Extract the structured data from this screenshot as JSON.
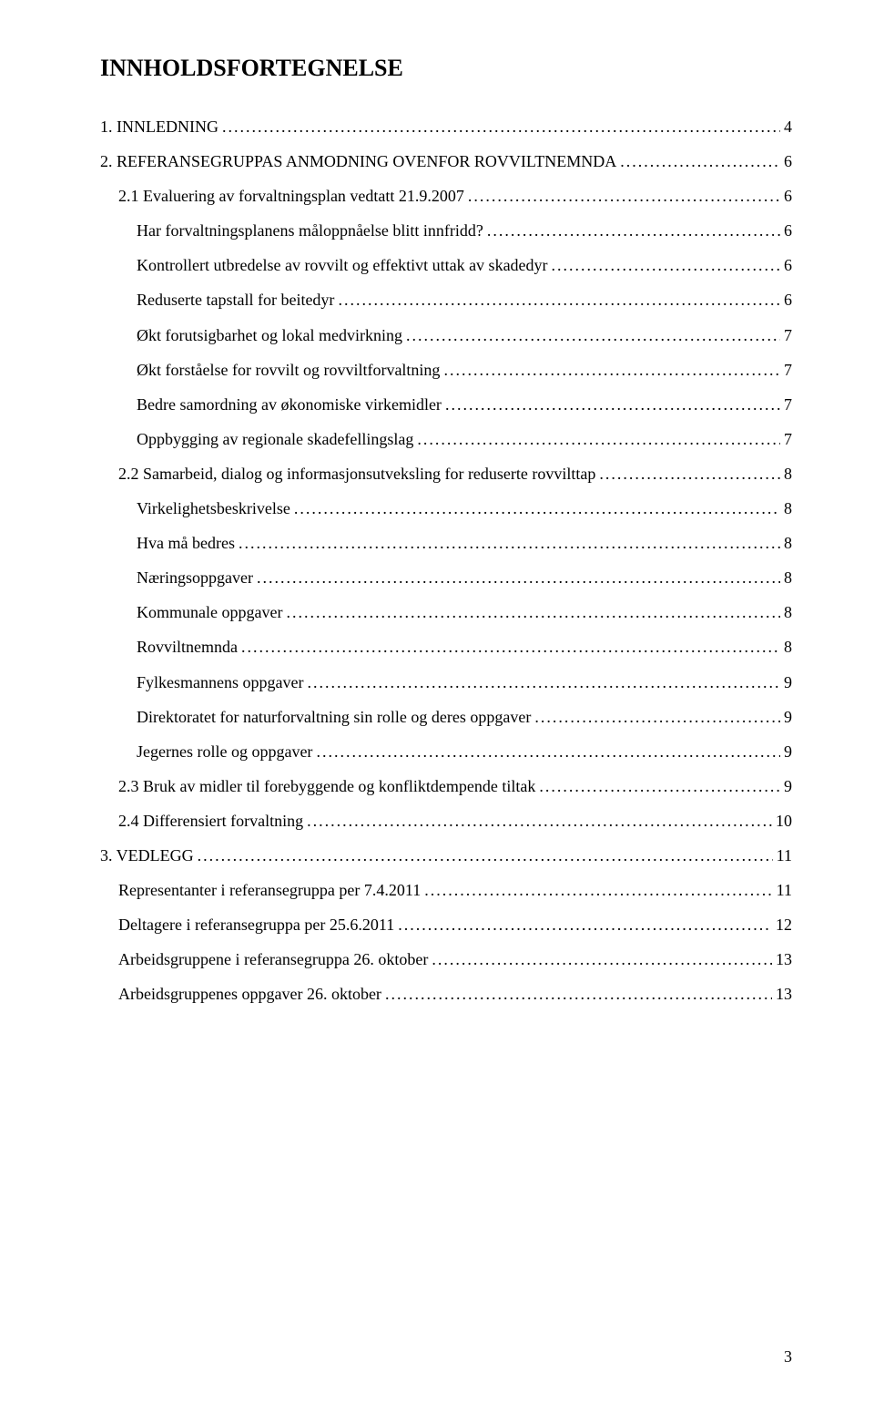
{
  "title": "INNHOLDSFORTEGNELSE",
  "pageNumber": "3",
  "entries": [
    {
      "label": "1. INNLEDNING",
      "page": "4",
      "indent": 0
    },
    {
      "label": "2. REFERANSEGRUPPAS ANMODNING OVENFOR ROVVILTNEMNDA",
      "page": "6",
      "indent": 0
    },
    {
      "label": "2.1 Evaluering av forvaltningsplan vedtatt 21.9.2007",
      "page": "6",
      "indent": 1
    },
    {
      "label": "Har forvaltningsplanens måloppnåelse blitt innfridd?",
      "page": "6",
      "indent": 2
    },
    {
      "label": "Kontrollert utbredelse av rovvilt og effektivt uttak av skadedyr",
      "page": "6",
      "indent": 2
    },
    {
      "label": "Reduserte tapstall for beitedyr",
      "page": "6",
      "indent": 2
    },
    {
      "label": "Økt forutsigbarhet og lokal medvirkning",
      "page": "7",
      "indent": 2
    },
    {
      "label": "Økt forståelse for rovvilt og rovviltforvaltning",
      "page": "7",
      "indent": 2
    },
    {
      "label": "Bedre samordning av økonomiske virkemidler",
      "page": "7",
      "indent": 2
    },
    {
      "label": "Oppbygging av regionale skadefellingslag",
      "page": "7",
      "indent": 2
    },
    {
      "label": "2.2 Samarbeid, dialog og informasjonsutveksling for reduserte rovvilttap",
      "page": "8",
      "indent": 1
    },
    {
      "label": "Virkelighetsbeskrivelse",
      "page": "8",
      "indent": 2
    },
    {
      "label": "Hva må bedres",
      "page": "8",
      "indent": 2
    },
    {
      "label": "Næringsoppgaver",
      "page": "8",
      "indent": 2
    },
    {
      "label": "Kommunale oppgaver",
      "page": "8",
      "indent": 2
    },
    {
      "label": "Rovviltnemnda",
      "page": "8",
      "indent": 2
    },
    {
      "label": "Fylkesmannens oppgaver",
      "page": "9",
      "indent": 2
    },
    {
      "label": "Direktoratet for naturforvaltning sin rolle og deres oppgaver",
      "page": "9",
      "indent": 2
    },
    {
      "label": "Jegernes rolle og oppgaver",
      "page": "9",
      "indent": 2
    },
    {
      "label": "2.3 Bruk av midler til forebyggende og konfliktdempende tiltak",
      "page": "9",
      "indent": 1
    },
    {
      "label": "2.4 Differensiert forvaltning",
      "page": "10",
      "indent": 1
    },
    {
      "label": "3. VEDLEGG",
      "page": "11",
      "indent": 0
    },
    {
      "label": "Representanter i referansegruppa per 7.4.2011",
      "page": "11",
      "indent": 1
    },
    {
      "label": "Deltagere i referansegruppa per 25.6.2011",
      "page": "12",
      "indent": 1
    },
    {
      "label": "Arbeidsgruppene i referansegruppa 26. oktober",
      "page": "13",
      "indent": 1
    },
    {
      "label": "Arbeidsgruppenes oppgaver 26. oktober",
      "page": "13",
      "indent": 1
    }
  ]
}
